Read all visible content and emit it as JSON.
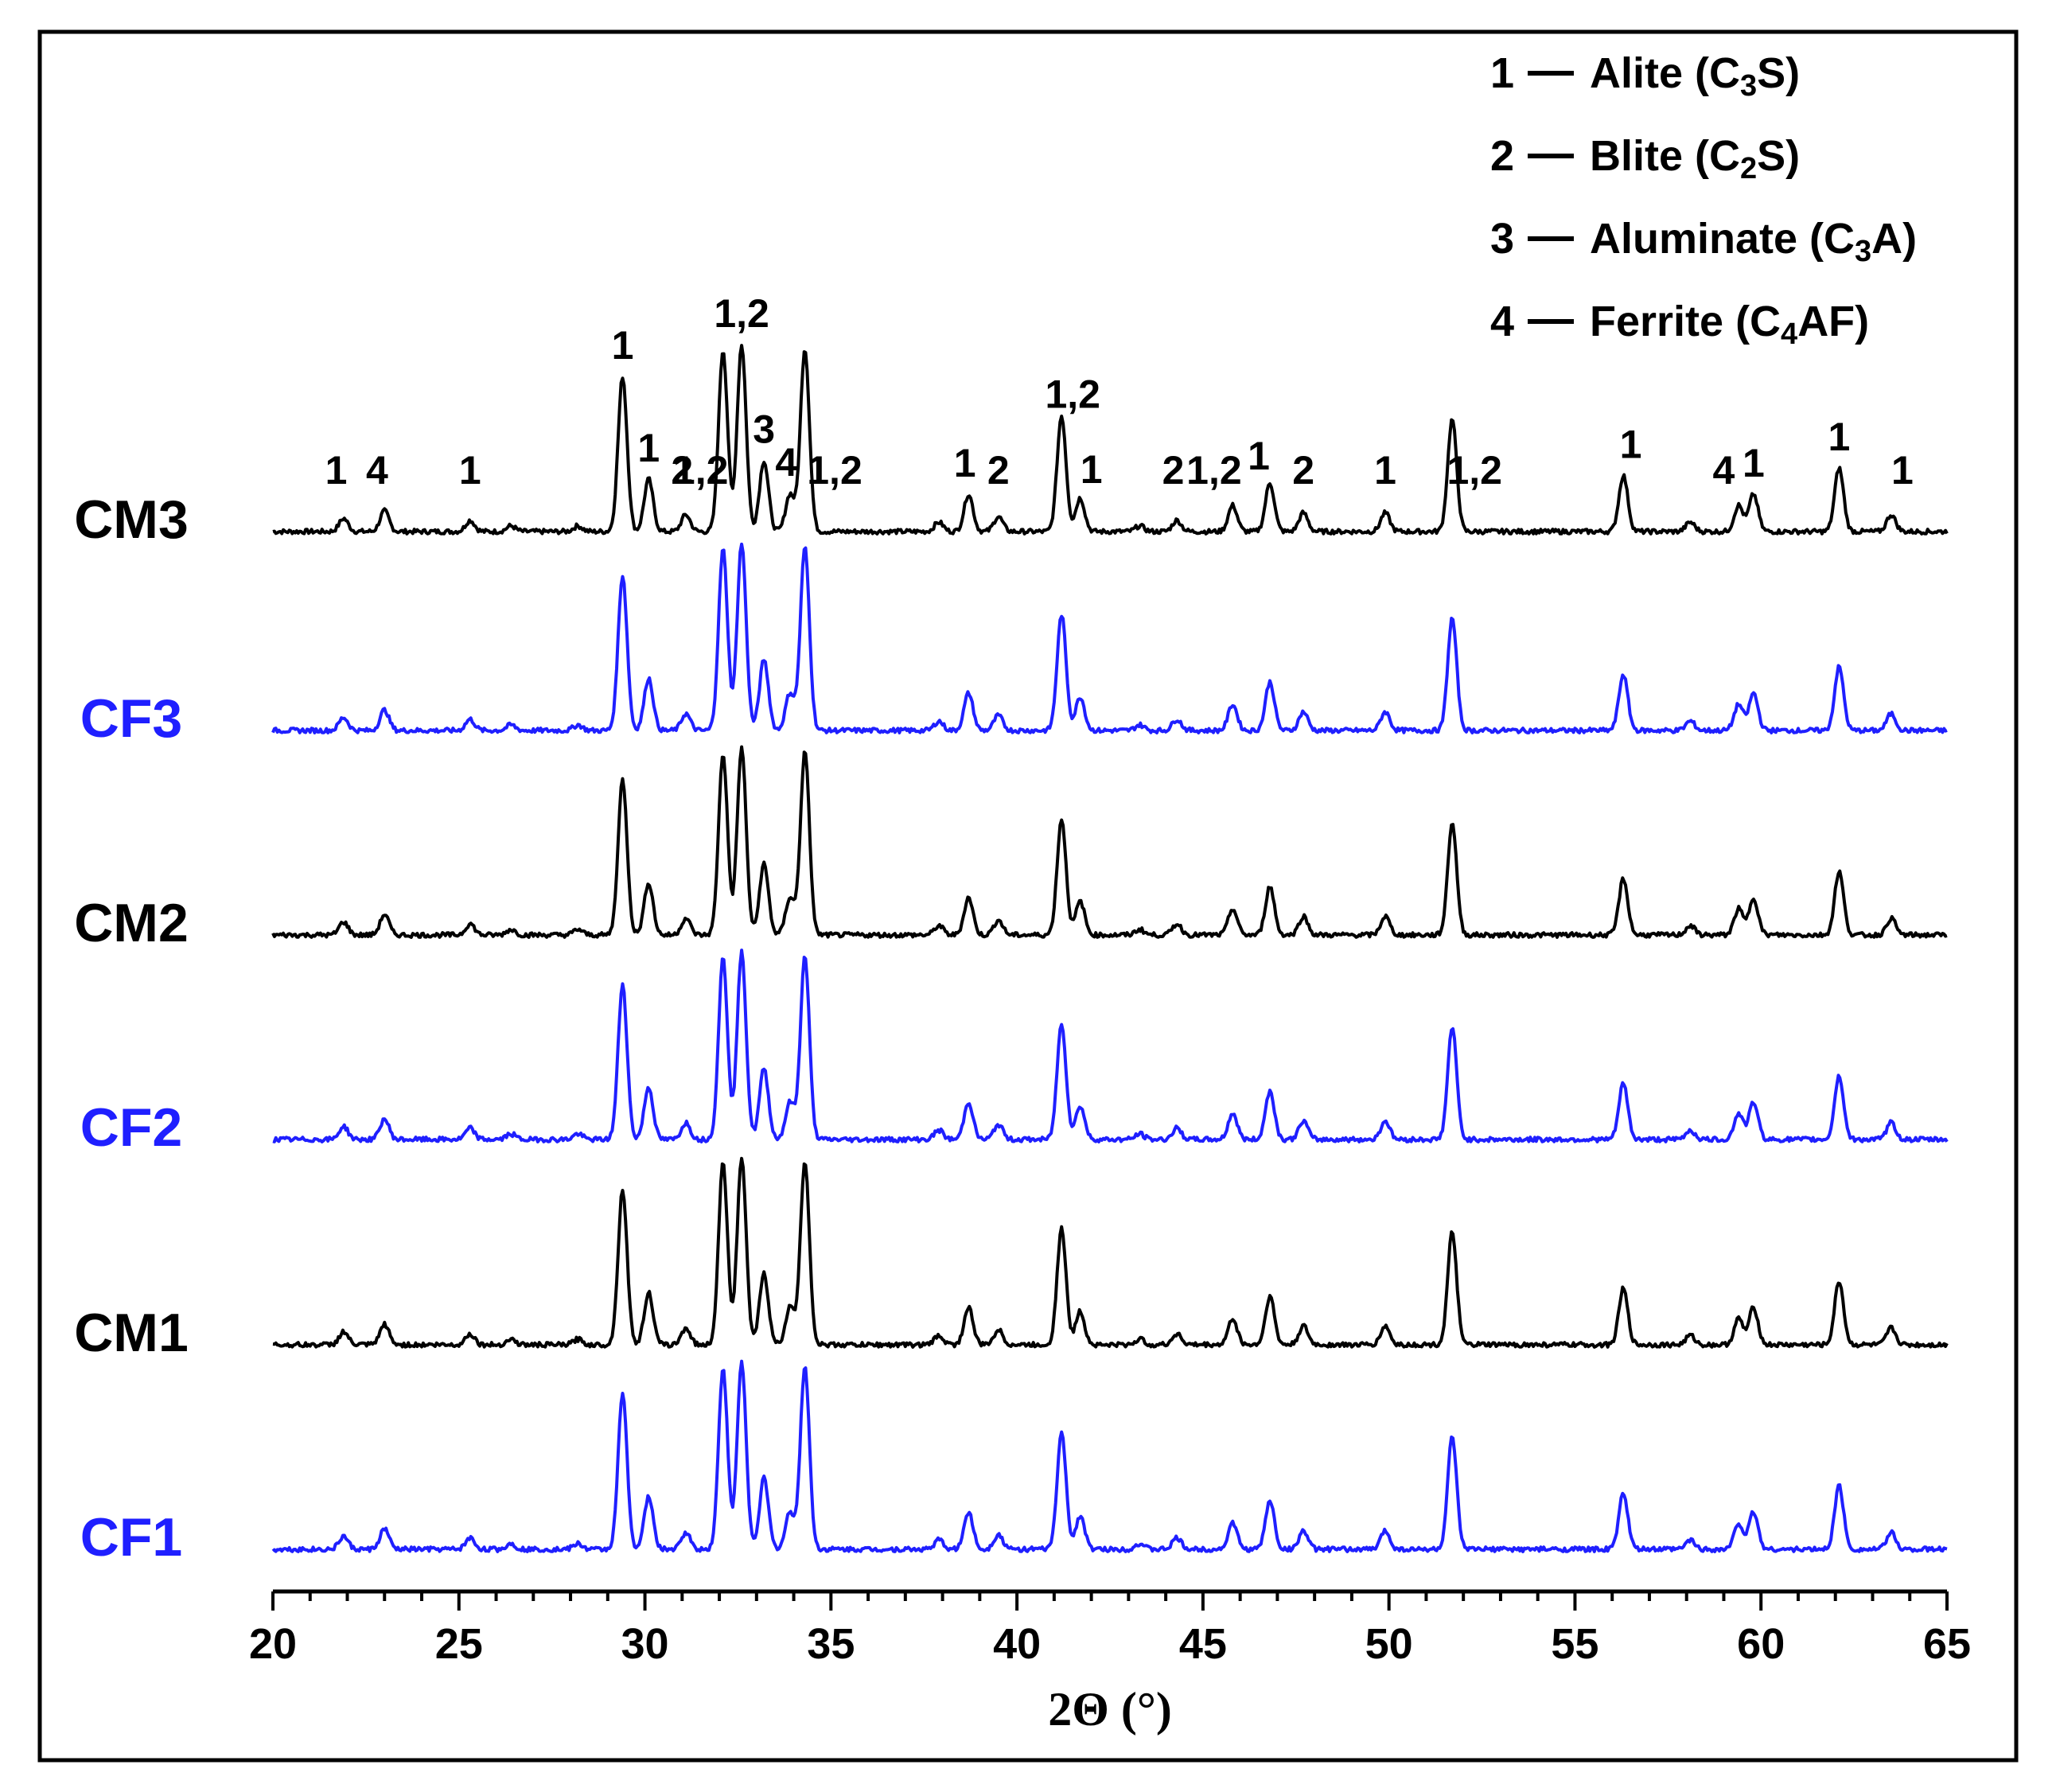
{
  "chart_data": {
    "type": "line",
    "xlabel": "2Θ (°)",
    "xlim": [
      20,
      65
    ],
    "x_ticks": [
      20,
      25,
      30,
      35,
      40,
      45,
      50,
      55,
      60,
      65
    ],
    "grid": false,
    "legend_position": "top-right",
    "colors": {
      "black": "#000000",
      "blue": "#1f1fff"
    },
    "legend": [
      {
        "num": "1",
        "name": "Alite (C",
        "sub": "3",
        "tail": "S)"
      },
      {
        "num": "2",
        "name": "Blite (C",
        "sub": "2",
        "tail": "S)"
      },
      {
        "num": "3",
        "name": "Aluminate (C",
        "sub": "3",
        "tail": "A)"
      },
      {
        "num": "4",
        "name": "Ferrite (C",
        "sub": "4",
        "tail": "AF)"
      }
    ],
    "peaks": [
      {
        "pos": 21.9,
        "phase": 1,
        "h": 0.07
      },
      {
        "pos": 23.0,
        "phase": 4,
        "h": 0.11
      },
      {
        "pos": 25.3,
        "phase": 1,
        "h": 0.06
      },
      {
        "pos": 26.4,
        "phase": 0,
        "h": 0.03
      },
      {
        "pos": 28.2,
        "phase": 0,
        "h": 0.03
      },
      {
        "pos": 29.4,
        "phase": 1,
        "h": 0.83
      },
      {
        "pos": 30.1,
        "phase": 1,
        "h": 0.28
      },
      {
        "pos": 31.1,
        "phase": 2,
        "h": 0.09
      },
      {
        "pos": 32.1,
        "phase": 1.2,
        "h": 0.97
      },
      {
        "pos": 32.6,
        "phase": 1.2,
        "h": 1.0
      },
      {
        "pos": 33.2,
        "phase": 3,
        "h": 0.38
      },
      {
        "pos": 33.9,
        "phase": 4,
        "h": 0.2
      },
      {
        "pos": 34.3,
        "phase": 1.2,
        "h": 0.98
      },
      {
        "pos": 37.9,
        "phase": 0,
        "h": 0.05
      },
      {
        "pos": 38.7,
        "phase": 1,
        "h": 0.2
      },
      {
        "pos": 39.5,
        "phase": 2,
        "h": 0.08
      },
      {
        "pos": 41.2,
        "phase": 1.2,
        "h": 0.62
      },
      {
        "pos": 41.7,
        "phase": 1,
        "h": 0.18
      },
      {
        "pos": 43.3,
        "phase": 0,
        "h": 0.03
      },
      {
        "pos": 44.3,
        "phase": 2,
        "h": 0.06
      },
      {
        "pos": 45.8,
        "phase": 1.2,
        "h": 0.14
      },
      {
        "pos": 46.8,
        "phase": 1,
        "h": 0.26
      },
      {
        "pos": 47.7,
        "phase": 2,
        "h": 0.1
      },
      {
        "pos": 49.9,
        "phase": 1,
        "h": 0.1
      },
      {
        "pos": 51.7,
        "phase": 1.2,
        "h": 0.6
      },
      {
        "pos": 56.3,
        "phase": 1,
        "h": 0.3
      },
      {
        "pos": 58.1,
        "phase": 0,
        "h": 0.05
      },
      {
        "pos": 59.4,
        "phase": 4,
        "h": 0.14
      },
      {
        "pos": 59.8,
        "phase": 1,
        "h": 0.2
      },
      {
        "pos": 62.1,
        "phase": 1,
        "h": 0.34
      },
      {
        "pos": 63.5,
        "phase": 1,
        "h": 0.09
      }
    ],
    "series": [
      {
        "name": "CM3",
        "color": "#000000",
        "offset": 5,
        "labelled": true
      },
      {
        "name": "CF3",
        "color": "#1f1fff",
        "offset": 4,
        "labelled": false
      },
      {
        "name": "CM2",
        "color": "#000000",
        "offset": 3,
        "labelled": false
      },
      {
        "name": "CF2",
        "color": "#1f1fff",
        "offset": 2,
        "labelled": false
      },
      {
        "name": "CM1",
        "color": "#000000",
        "offset": 1,
        "labelled": false
      },
      {
        "name": "CF1",
        "color": "#1f1fff",
        "offset": 0,
        "labelled": false
      }
    ],
    "peak_labels": [
      {
        "x": 21.7,
        "text": "1"
      },
      {
        "x": 22.8,
        "text": "4"
      },
      {
        "x": 25.3,
        "text": "1"
      },
      {
        "x": 29.4,
        "text": "1"
      },
      {
        "x": 30.1,
        "text": "1"
      },
      {
        "x": 31.0,
        "text": "2"
      },
      {
        "x": 31.5,
        "text": "1,2"
      },
      {
        "x": 32.6,
        "text": "1,2"
      },
      {
        "x": 33.2,
        "text": "3"
      },
      {
        "x": 33.8,
        "text": "4"
      },
      {
        "x": 35.1,
        "text": "1,2"
      },
      {
        "x": 38.6,
        "text": "1"
      },
      {
        "x": 39.5,
        "text": "2"
      },
      {
        "x": 41.5,
        "text": "1,2"
      },
      {
        "x": 42.0,
        "text": "1"
      },
      {
        "x": 44.2,
        "text": "2"
      },
      {
        "x": 45.3,
        "text": "1,2"
      },
      {
        "x": 46.5,
        "text": "1"
      },
      {
        "x": 47.7,
        "text": "2"
      },
      {
        "x": 49.9,
        "text": "1"
      },
      {
        "x": 52.3,
        "text": "1,2"
      },
      {
        "x": 56.5,
        "text": "1"
      },
      {
        "x": 59.0,
        "text": "4"
      },
      {
        "x": 59.8,
        "text": "1"
      },
      {
        "x": 62.1,
        "text": "1"
      },
      {
        "x": 63.8,
        "text": "1"
      }
    ]
  }
}
